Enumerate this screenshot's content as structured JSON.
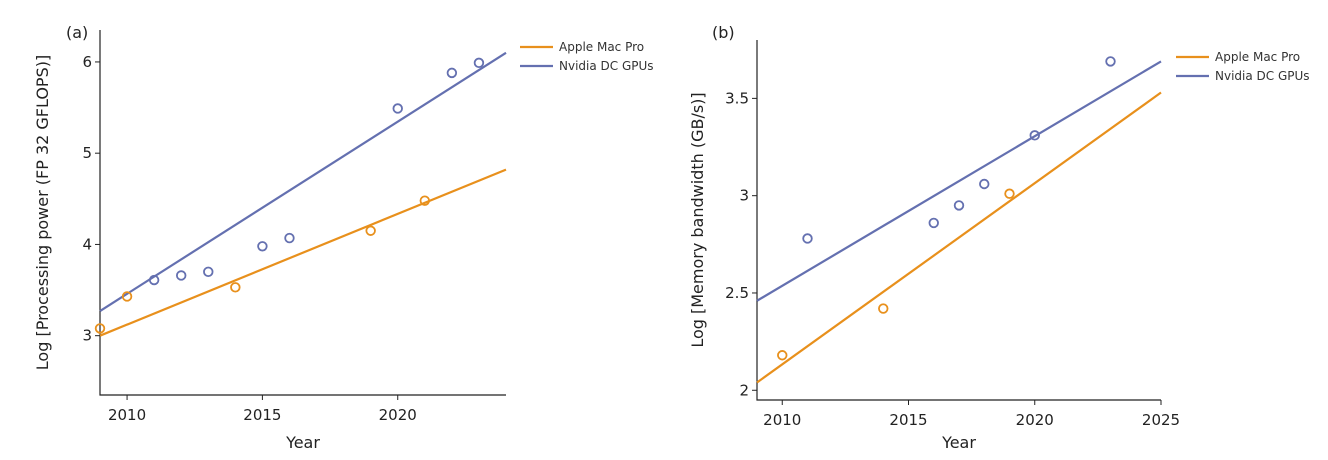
{
  "colors": {
    "apple": "#E8901C",
    "nvidia": "#6470B0",
    "axis": "#222222"
  },
  "chart_data": [
    {
      "type": "scatter",
      "panel_label": "(a)",
      "xlabel": "Year",
      "ylabel": "Log [Processing power (FP 32 GFLOPS)]",
      "xlim": [
        2009,
        2024
      ],
      "ylim": [
        2.35,
        6.35
      ],
      "xticks": [
        2010,
        2015,
        2020
      ],
      "yticks": [
        3,
        4,
        5,
        6
      ],
      "legend": [
        "Apple Mac Pro",
        "Nvidia DC GPUs"
      ],
      "series": [
        {
          "name": "Apple Mac Pro",
          "points": [
            [
              2009,
              3.08
            ],
            [
              2010,
              3.43
            ],
            [
              2014,
              3.53
            ],
            [
              2019,
              4.15
            ],
            [
              2021,
              4.48
            ]
          ],
          "fit": [
            [
              2009,
              3.0
            ],
            [
              2024,
              4.82
            ]
          ]
        },
        {
          "name": "Nvidia DC GPUs",
          "points": [
            [
              2011,
              3.61
            ],
            [
              2012,
              3.66
            ],
            [
              2013,
              3.7
            ],
            [
              2015,
              3.98
            ],
            [
              2016,
              4.07
            ],
            [
              2020,
              5.49
            ],
            [
              2022,
              5.88
            ],
            [
              2023,
              5.99
            ]
          ],
          "fit": [
            [
              2009,
              3.27
            ],
            [
              2024,
              6.1
            ]
          ]
        }
      ]
    },
    {
      "type": "scatter",
      "panel_label": "(b)",
      "xlabel": "Year",
      "ylabel": "Log [Memory bandwidth (GB/s)]",
      "xlim": [
        2009,
        2025
      ],
      "ylim": [
        1.95,
        3.8
      ],
      "xticks": [
        2010,
        2015,
        2020,
        2025
      ],
      "yticks": [
        2,
        2.5,
        3,
        3.5
      ],
      "legend": [
        "Apple Mac Pro",
        "Nvidia DC GPUs"
      ],
      "series": [
        {
          "name": "Apple Mac Pro",
          "points": [
            [
              2010,
              2.18
            ],
            [
              2014,
              2.42
            ],
            [
              2019,
              3.01
            ]
          ],
          "fit": [
            [
              2009,
              2.04
            ],
            [
              2025,
              3.53
            ]
          ]
        },
        {
          "name": "Nvidia DC GPUs",
          "points": [
            [
              2011,
              2.78
            ],
            [
              2016,
              2.86
            ],
            [
              2017,
              2.95
            ],
            [
              2018,
              3.06
            ],
            [
              2020,
              3.31
            ],
            [
              2023,
              3.69
            ]
          ],
          "fit": [
            [
              2009,
              2.46
            ],
            [
              2025,
              3.69
            ]
          ]
        }
      ]
    }
  ]
}
